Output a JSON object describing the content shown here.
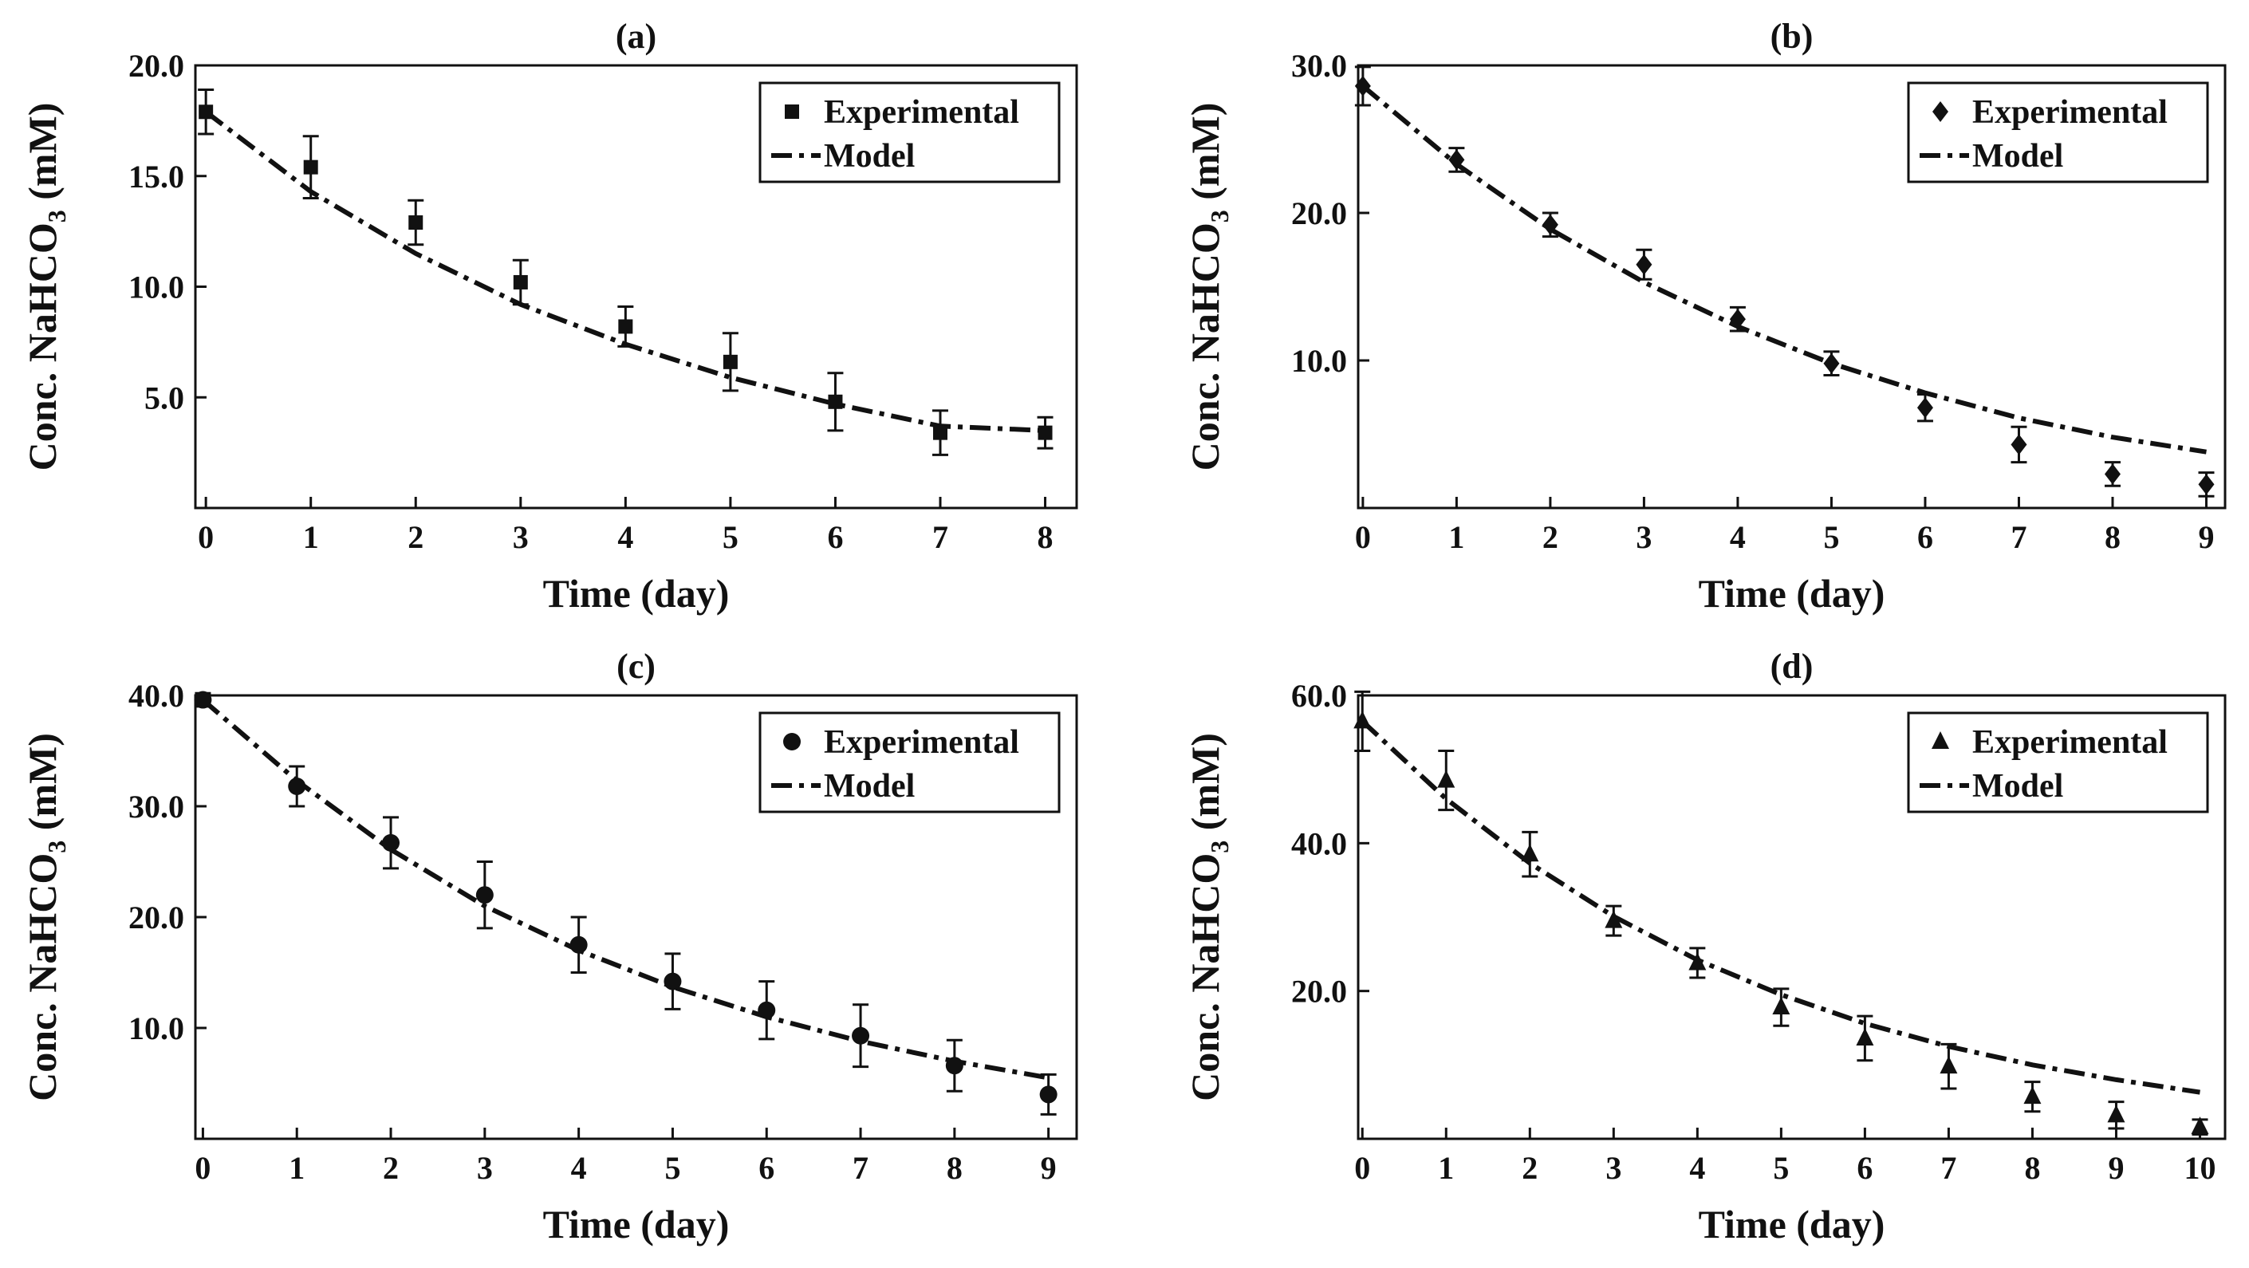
{
  "figure": {
    "ylabel_main": "Conc. NaHCO",
    "ylabel_sub": "3",
    "ylabel_unit": " (mM)"
  },
  "chart_data": [
    {
      "type": "scatter",
      "title": "(a)",
      "xlabel": "Time (day)",
      "ylabel": "Conc. NaHCO3 (mM)",
      "xlim": [
        -0.1,
        8.3
      ],
      "ylim": [
        0,
        20.0
      ],
      "xticks": [
        0,
        1,
        2,
        3,
        4,
        5,
        6,
        7,
        8
      ],
      "xtick_labels": [
        "0",
        "1",
        "2",
        "3",
        "4",
        "5",
        "6",
        "7",
        "8"
      ],
      "yticks": [
        5.0,
        10.0,
        15.0,
        20.0
      ],
      "ytick_labels": [
        "5.0",
        "10.0",
        "15.0",
        "20.0"
      ],
      "legend_position": "top-right",
      "marker": "square",
      "series": [
        {
          "name": "Experimental",
          "kind": "points",
          "x": [
            0,
            1,
            2,
            3,
            4,
            5,
            6,
            7,
            8
          ],
          "y": [
            17.9,
            15.4,
            12.9,
            10.2,
            8.2,
            6.6,
            4.8,
            3.4,
            3.4
          ],
          "err": [
            1.0,
            1.4,
            1.0,
            1.0,
            0.9,
            1.3,
            1.3,
            1.0,
            0.7
          ]
        },
        {
          "name": "Model",
          "kind": "line",
          "x": [
            0,
            1,
            2,
            3,
            4,
            5,
            6,
            7,
            8
          ],
          "y": [
            17.9,
            14.3,
            11.5,
            9.2,
            7.4,
            5.9,
            4.7,
            3.7,
            3.5
          ]
        }
      ]
    },
    {
      "type": "scatter",
      "title": "(b)",
      "xlabel": "Time (day)",
      "ylabel": "Conc. NaHCO3 (mM)",
      "xlim": [
        -0.05,
        9.2
      ],
      "ylim": [
        0,
        30.0
      ],
      "xticks": [
        0,
        1,
        2,
        3,
        4,
        5,
        6,
        7,
        8,
        9
      ],
      "xtick_labels": [
        "0",
        "1",
        "2",
        "3",
        "4",
        "5",
        "6",
        "7",
        "8",
        "9"
      ],
      "yticks": [
        10.0,
        20.0,
        30.0
      ],
      "ytick_labels": [
        "10.0",
        "20.0",
        "30.0"
      ],
      "legend_position": "top-right",
      "marker": "diamond",
      "series": [
        {
          "name": "Experimental",
          "kind": "points",
          "x": [
            0,
            1,
            2,
            3,
            4,
            5,
            6,
            7,
            8,
            9
          ],
          "y": [
            28.6,
            23.6,
            19.2,
            16.5,
            12.8,
            9.8,
            6.8,
            4.3,
            2.3,
            1.6
          ],
          "err": [
            1.3,
            0.8,
            0.8,
            1.0,
            0.8,
            0.8,
            0.9,
            1.2,
            0.8,
            0.8
          ]
        },
        {
          "name": "Model",
          "kind": "line",
          "x": [
            0,
            1,
            2,
            3,
            4,
            5,
            6,
            7,
            8,
            9
          ],
          "y": [
            28.6,
            23.3,
            18.9,
            15.3,
            12.3,
            9.8,
            7.8,
            6.1,
            4.8,
            3.8
          ]
        }
      ]
    },
    {
      "type": "scatter",
      "title": "(c)",
      "xlabel": "Time (day)",
      "ylabel": "Conc. NaHCO3 (mM)",
      "xlim": [
        -0.08,
        9.3
      ],
      "ylim": [
        0,
        40.0
      ],
      "xticks": [
        0,
        1,
        2,
        3,
        4,
        5,
        6,
        7,
        8,
        9
      ],
      "xtick_labels": [
        "0",
        "1",
        "2",
        "3",
        "4",
        "5",
        "6",
        "7",
        "8",
        "9"
      ],
      "yticks": [
        10.0,
        20.0,
        30.0,
        40.0
      ],
      "ytick_labels": [
        "10.0",
        "20.0",
        "30.0",
        "40.0"
      ],
      "legend_position": "top-right",
      "marker": "circle",
      "series": [
        {
          "name": "Experimental",
          "kind": "points",
          "x": [
            0,
            1,
            2,
            3,
            4,
            5,
            6,
            7,
            8,
            9
          ],
          "y": [
            39.6,
            31.8,
            26.7,
            22.0,
            17.5,
            14.2,
            11.6,
            9.3,
            6.6,
            4.0
          ],
          "err": [
            0.6,
            1.8,
            2.3,
            3.0,
            2.5,
            2.5,
            2.6,
            2.8,
            2.3,
            1.8
          ]
        },
        {
          "name": "Model",
          "kind": "line",
          "x": [
            0,
            1,
            2,
            3,
            4,
            5,
            6,
            7,
            8,
            9
          ],
          "y": [
            39.6,
            32.3,
            26.1,
            21.0,
            17.0,
            13.7,
            11.0,
            8.8,
            7.0,
            5.5
          ]
        }
      ]
    },
    {
      "type": "scatter",
      "title": "(d)",
      "xlabel": "Time (day)",
      "ylabel": "Conc. NaHCO3 (mM)",
      "xlim": [
        -0.05,
        10.3
      ],
      "ylim": [
        0,
        60.0
      ],
      "xticks": [
        0,
        1,
        2,
        3,
        4,
        5,
        6,
        7,
        8,
        9,
        10
      ],
      "xtick_labels": [
        "0",
        "1",
        "2",
        "3",
        "4",
        "5",
        "6",
        "7",
        "8",
        "9",
        "10"
      ],
      "yticks": [
        20.0,
        40.0,
        60.0
      ],
      "ytick_labels": [
        "20.0",
        "40.0",
        "60.0"
      ],
      "legend_position": "top-right",
      "marker": "triangle",
      "series": [
        {
          "name": "Experimental",
          "kind": "points",
          "x": [
            0,
            1,
            2,
            3,
            4,
            5,
            6,
            7,
            8,
            9,
            10
          ],
          "y": [
            56.5,
            48.5,
            38.5,
            29.5,
            23.8,
            17.8,
            13.6,
            9.8,
            5.7,
            3.2,
            1.6
          ],
          "err": [
            4.0,
            4.0,
            3.0,
            2.0,
            2.0,
            2.5,
            3.0,
            3.0,
            2.0,
            1.8,
            1.0
          ]
        },
        {
          "name": "Model",
          "kind": "line",
          "x": [
            0,
            1,
            2,
            3,
            4,
            5,
            6,
            7,
            8,
            9,
            10
          ],
          "y": [
            56.5,
            46.0,
            37.3,
            30.1,
            24.2,
            19.5,
            15.6,
            12.5,
            10.0,
            8.0,
            6.3
          ]
        }
      ]
    }
  ]
}
